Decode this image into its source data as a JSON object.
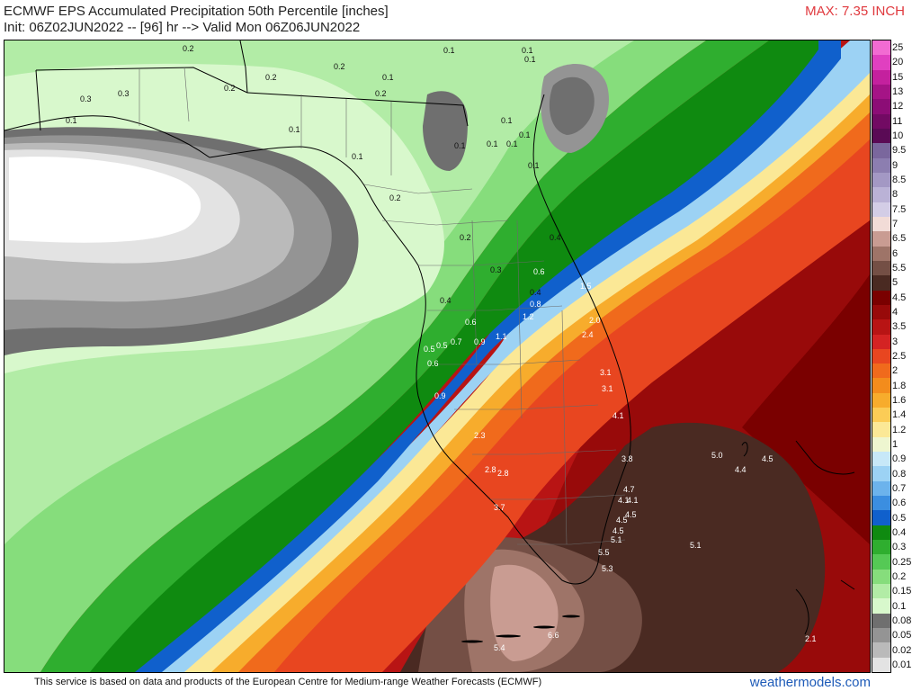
{
  "header": {
    "title": "ECMWF EPS Accumulated Precipitation 50th Percentile [inches]",
    "init": "Init: 06Z02JUN2022 -- [96] hr --> Valid Mon 06Z06JUN2022",
    "max": "MAX: 7.35 INCH"
  },
  "footer": {
    "source": "This service is based on data and products of the European Centre for Medium-range Weather Forecasts (ECMWF)",
    "brand": "weathermodels.com"
  },
  "legend": [
    {
      "label": "25",
      "color": "#f26bd2"
    },
    {
      "label": "20",
      "color": "#e040c0"
    },
    {
      "label": "15",
      "color": "#c4219e"
    },
    {
      "label": "13",
      "color": "#a51486"
    },
    {
      "label": "12",
      "color": "#8c0d76"
    },
    {
      "label": "11",
      "color": "#720a63"
    },
    {
      "label": "10",
      "color": "#5a0a55"
    },
    {
      "label": "9.5",
      "color": "#7a679d"
    },
    {
      "label": "9",
      "color": "#8c7eb0"
    },
    {
      "label": "8.5",
      "color": "#a398c4"
    },
    {
      "label": "8",
      "color": "#bab2d6"
    },
    {
      "label": "7.5",
      "color": "#d3cde6"
    },
    {
      "label": "7",
      "color": "#f2dcd7"
    },
    {
      "label": "6.5",
      "color": "#c99c92"
    },
    {
      "label": "6",
      "color": "#9e7468"
    },
    {
      "label": "5.5",
      "color": "#744f45"
    },
    {
      "label": "5",
      "color": "#4a2a22"
    },
    {
      "label": "4.5",
      "color": "#7a0000"
    },
    {
      "label": "4",
      "color": "#980a0a"
    },
    {
      "label": "3.5",
      "color": "#b81414"
    },
    {
      "label": "3",
      "color": "#d42323"
    },
    {
      "label": "2.5",
      "color": "#e84620"
    },
    {
      "label": "2",
      "color": "#f06a1c"
    },
    {
      "label": "1.8",
      "color": "#f38c1c"
    },
    {
      "label": "1.6",
      "color": "#f7ac2c"
    },
    {
      "label": "1.4",
      "color": "#fbcc56"
    },
    {
      "label": "1.2",
      "color": "#fbe896"
    },
    {
      "label": "1",
      "color": "#eef6d0"
    },
    {
      "label": "0.9",
      "color": "#c7e8f8"
    },
    {
      "label": "0.8",
      "color": "#9cd2f4"
    },
    {
      "label": "0.7",
      "color": "#6cb3ec"
    },
    {
      "label": "0.6",
      "color": "#3b8ee0"
    },
    {
      "label": "0.5",
      "color": "#1060cc"
    },
    {
      "label": "0.4",
      "color": "#0f8a10"
    },
    {
      "label": "0.3",
      "color": "#2fae2f"
    },
    {
      "label": "0.25",
      "color": "#55c955"
    },
    {
      "label": "0.2",
      "color": "#86dd7c"
    },
    {
      "label": "0.15",
      "color": "#b2eca6"
    },
    {
      "label": "0.1",
      "color": "#d8f8cc"
    },
    {
      "label": "0.08",
      "color": "#6f6f6f"
    },
    {
      "label": "0.05",
      "color": "#949494"
    },
    {
      "label": "0.02",
      "color": "#bababa"
    },
    {
      "label": "0.01",
      "color": "#e3e3e3"
    }
  ],
  "station_values": [
    {
      "id": "v1",
      "text": "0.1"
    },
    {
      "id": "v2",
      "text": "0.1"
    },
    {
      "id": "v3",
      "text": "0.2"
    },
    {
      "id": "v4",
      "text": "0.2"
    },
    {
      "id": "v5",
      "text": "0.1"
    },
    {
      "id": "v6",
      "text": "0.2"
    },
    {
      "id": "v7",
      "text": "0.2"
    },
    {
      "id": "v8",
      "text": "0.3"
    },
    {
      "id": "v9",
      "text": "0.3"
    },
    {
      "id": "v10",
      "text": "0.1"
    },
    {
      "id": "v11",
      "text": "0.1"
    },
    {
      "id": "v12",
      "text": "0.1"
    },
    {
      "id": "v13",
      "text": "0.1"
    },
    {
      "id": "v14",
      "text": "0.1"
    },
    {
      "id": "v15",
      "text": "0.1"
    },
    {
      "id": "v16",
      "text": "0.1"
    },
    {
      "id": "v17",
      "text": "0.1"
    },
    {
      "id": "v18",
      "text": "0.1"
    },
    {
      "id": "v19",
      "text": "0.2"
    },
    {
      "id": "v20",
      "text": "0.1"
    },
    {
      "id": "v21",
      "text": "0.2"
    },
    {
      "id": "v22",
      "text": "0.2"
    },
    {
      "id": "v23",
      "text": "0.3"
    },
    {
      "id": "v24",
      "text": "0.4"
    },
    {
      "id": "v25",
      "text": "0.6"
    },
    {
      "id": "v26",
      "text": "0.4"
    },
    {
      "id": "v27",
      "text": "0.8"
    },
    {
      "id": "v28",
      "text": "1.2"
    },
    {
      "id": "v29",
      "text": "0.4"
    },
    {
      "id": "v30",
      "text": "0.6"
    },
    {
      "id": "v31",
      "text": "1.5"
    },
    {
      "id": "v32",
      "text": "2.0"
    },
    {
      "id": "v33",
      "text": "2.4"
    },
    {
      "id": "v34",
      "text": "1.1"
    },
    {
      "id": "v35",
      "text": "0.7"
    },
    {
      "id": "v36",
      "text": "0.9"
    },
    {
      "id": "v37",
      "text": "0.5"
    },
    {
      "id": "v38",
      "text": "0.5"
    },
    {
      "id": "v39",
      "text": "0.6"
    },
    {
      "id": "v40",
      "text": "3.1"
    },
    {
      "id": "v41",
      "text": "3.1"
    },
    {
      "id": "v42",
      "text": "0.9"
    },
    {
      "id": "v43",
      "text": "4.1"
    },
    {
      "id": "v44",
      "text": "2.3"
    },
    {
      "id": "v45",
      "text": "3.8"
    },
    {
      "id": "v46",
      "text": "2.8"
    },
    {
      "id": "v47",
      "text": "2.8"
    },
    {
      "id": "v48",
      "text": "4.7"
    },
    {
      "id": "v49",
      "text": "4.1"
    },
    {
      "id": "v50",
      "text": "4.1"
    },
    {
      "id": "v51",
      "text": "4.5"
    },
    {
      "id": "v52",
      "text": "4.5"
    },
    {
      "id": "v53",
      "text": "4.5"
    },
    {
      "id": "v54",
      "text": "5.1"
    },
    {
      "id": "v55",
      "text": "3.7"
    },
    {
      "id": "v56",
      "text": "5.5"
    },
    {
      "id": "v57",
      "text": "5.3"
    },
    {
      "id": "v58",
      "text": "5.0"
    },
    {
      "id": "v59",
      "text": "4.4"
    },
    {
      "id": "v60",
      "text": "4.5"
    },
    {
      "id": "v61",
      "text": "5.1"
    },
    {
      "id": "v62",
      "text": "6.6"
    },
    {
      "id": "v63",
      "text": "5.4"
    },
    {
      "id": "v64",
      "text": "2.1"
    }
  ]
}
